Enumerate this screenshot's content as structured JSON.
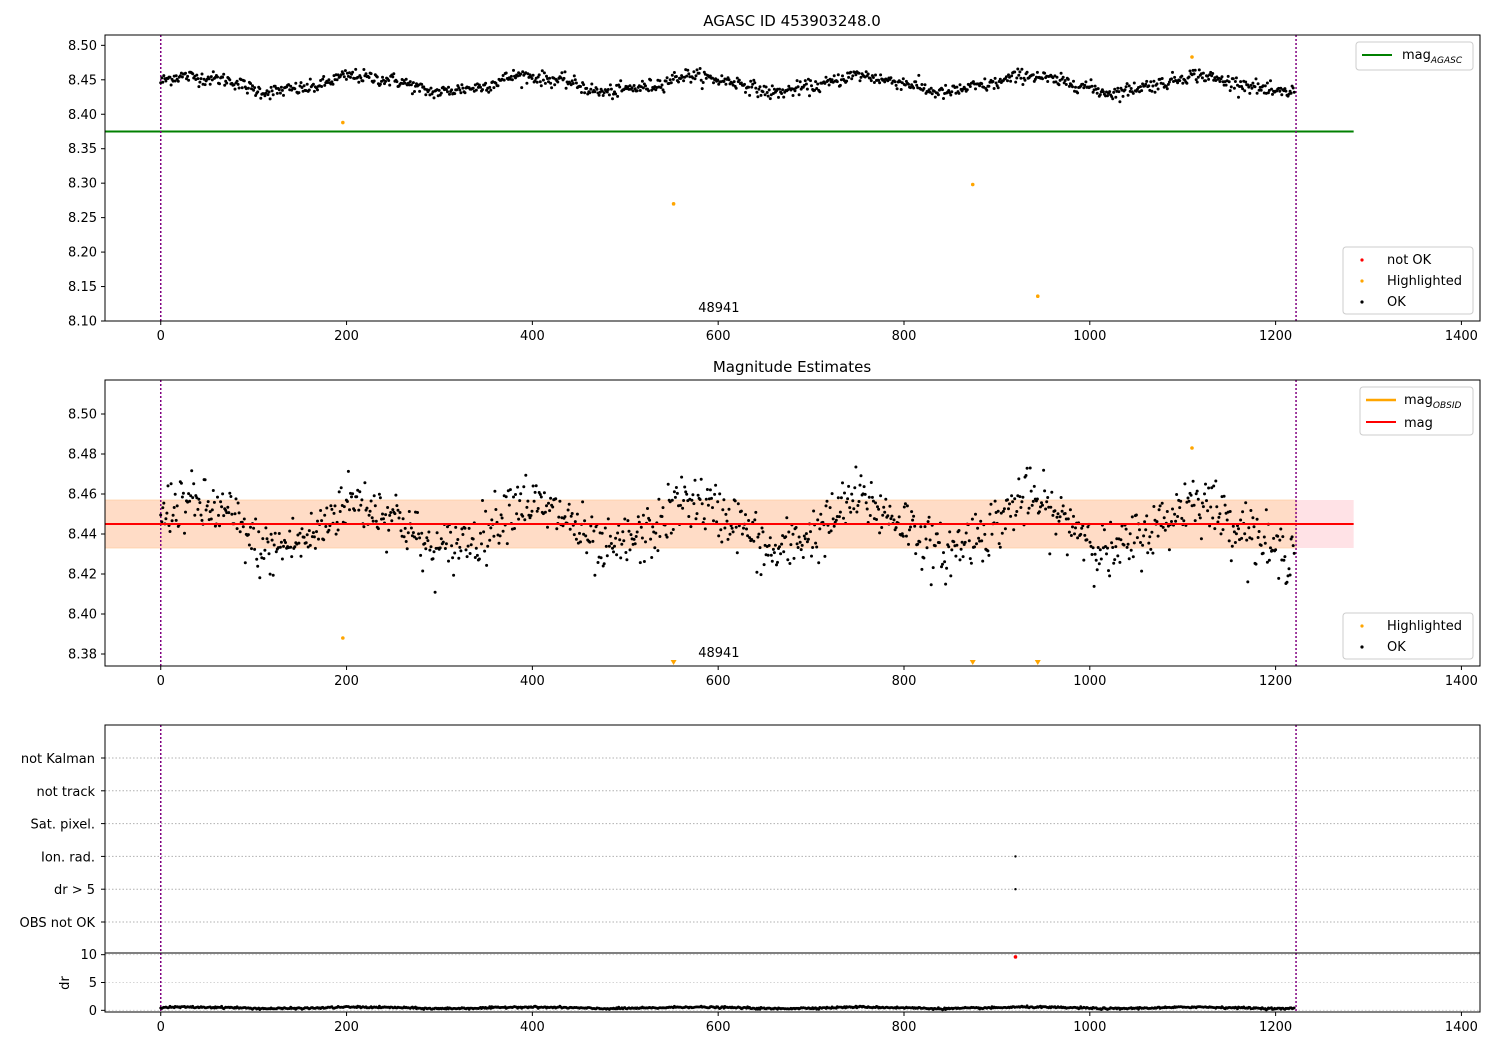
{
  "colors": {
    "ok": "#000000",
    "highlighted": "#ffa500",
    "not_ok": "#ff0000",
    "agasc_line": "#008000",
    "mag_line": "#ff0000",
    "obs_boundary": "#800080",
    "band_fill": "#ffb6c1",
    "band_fill_overlay": "#ffdab9"
  },
  "chart_data": [
    {
      "type": "scatter",
      "title": "AGASC ID 453903248.0",
      "xlim": [
        -60,
        1420
      ],
      "ylim": [
        8.1,
        8.515
      ],
      "x_ticks": [
        0,
        200,
        400,
        600,
        800,
        1000,
        1200,
        1400
      ],
      "y_ticks": [
        "8.10",
        "8.15",
        "8.20",
        "8.25",
        "8.30",
        "8.35",
        "8.40",
        "8.45",
        "8.50"
      ],
      "obs_boundaries": [
        0,
        1222
      ],
      "obs_label": "48941",
      "obs_label_x": 590,
      "mag_agasc": 8.375,
      "mag_agasc_x_range": [
        -60,
        1284
      ],
      "ok_series": {
        "x_start": 0,
        "x_end": 1220,
        "count": 1100,
        "baseline": 8.444,
        "wave_amp": 0.013,
        "noise": 0.005
      },
      "highlighted_points": [
        {
          "x": 196,
          "y": 8.388
        },
        {
          "x": 552,
          "y": 8.27
        },
        {
          "x": 874,
          "y": 8.298
        },
        {
          "x": 944,
          "y": 8.136
        },
        {
          "x": 1110,
          "y": 8.483
        }
      ],
      "legend_top": [
        {
          "label": "mag",
          "sub": "AGASC"
        }
      ],
      "legend_bottom": [
        {
          "label": "not OK",
          "color": "not_ok"
        },
        {
          "label": "Highlighted",
          "color": "highlighted"
        },
        {
          "label": "OK",
          "color": "ok"
        }
      ]
    },
    {
      "type": "scatter",
      "title": "Magnitude Estimates",
      "xlim": [
        -60,
        1420
      ],
      "ylim": [
        8.374,
        8.517
      ],
      "x_ticks": [
        0,
        200,
        400,
        600,
        800,
        1000,
        1200,
        1400
      ],
      "y_ticks": [
        "8.38",
        "8.40",
        "8.42",
        "8.44",
        "8.46",
        "8.48",
        "8.50"
      ],
      "obs_boundaries": [
        0,
        1222
      ],
      "obs_label": "48941",
      "obs_label_x": 590,
      "mag": 8.445,
      "mag_band": [
        8.433,
        8.457
      ],
      "mag_x_range": [
        -60,
        1284
      ],
      "ok_series": {
        "x_start": 0,
        "x_end": 1220,
        "count": 1100,
        "baseline": 8.444,
        "wave_amp": 0.014,
        "noise": 0.007
      },
      "highlighted_points": [
        {
          "x": 196,
          "y": 8.388
        },
        {
          "x": 1110,
          "y": 8.483
        }
      ],
      "highlighted_below_range": [
        552,
        874,
        944
      ],
      "legend_top": [
        {
          "label": "mag",
          "sub": "OBSID",
          "color": "highlighted"
        },
        {
          "label": "mag",
          "sub": "",
          "color": "mag_line"
        }
      ],
      "legend_bottom": [
        {
          "label": "Highlighted",
          "color": "highlighted"
        },
        {
          "label": "OK",
          "color": "ok"
        }
      ]
    },
    {
      "type": "scatter",
      "title": "",
      "xlim": [
        -60,
        1420
      ],
      "flag_rows": [
        "not Kalman",
        "not track",
        "Sat. pixel.",
        "Ion. rad.",
        "dr > 5",
        "OBS not OK"
      ],
      "flag_points": [
        {
          "row": "Ion. rad.",
          "x": 920
        },
        {
          "row": "dr > 5",
          "x": 920
        }
      ],
      "obs_boundaries": [
        0,
        1222
      ]
    },
    {
      "type": "scatter",
      "title": "",
      "xlim": [
        -60,
        1420
      ],
      "ylim": [
        -0.3,
        10.3
      ],
      "x_ticks": [
        0,
        200,
        400,
        600,
        800,
        1000,
        1200,
        1400
      ],
      "y_ticks": [
        "0",
        "5",
        "10"
      ],
      "ylabel": "dr",
      "obs_boundaries": [
        0,
        1222
      ],
      "dr_series": {
        "x_start": 0,
        "x_end": 1220,
        "count": 1100,
        "baseline": 0.45,
        "noise": 0.25
      },
      "not_ok_points": [
        {
          "x": 920,
          "y": 9.6
        }
      ]
    }
  ]
}
